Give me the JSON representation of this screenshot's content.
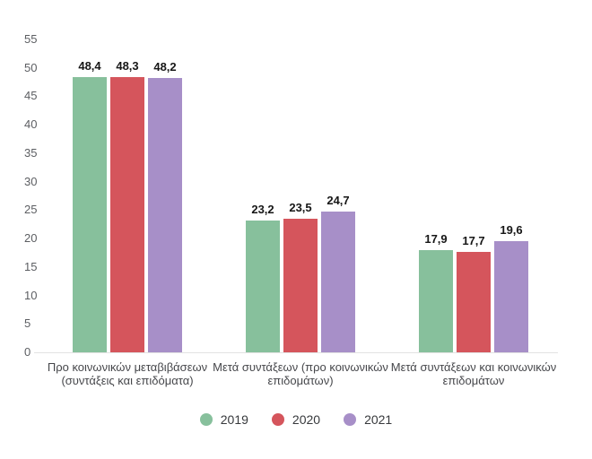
{
  "chart_data": {
    "type": "bar",
    "title": "",
    "xlabel": "",
    "ylabel": "",
    "categories": [
      "Προ κοινωνικών μεταβιβάσεων (συντάξεις και επιδόματα)",
      "Μετά συντάξεων (προ κοινωνικών επιδομάτων)",
      "Μετά συντάξεων και κοινωνικών επιδομάτων"
    ],
    "category_lines": [
      [
        "Προ κοινωνικών μεταβιβάσεων",
        "(συντάξεις και επιδόματα)"
      ],
      [
        "Μετά συντάξεων (προ κοινωνικών",
        "επιδομάτων)"
      ],
      [
        "Μετά συντάξεων και κοινωνικών",
        "επιδομάτων"
      ]
    ],
    "series": [
      {
        "name": "2019",
        "color": "#87c09c",
        "values": [
          48.4,
          23.2,
          17.9
        ],
        "value_labels": [
          "48,4",
          "23,2",
          "17,9"
        ]
      },
      {
        "name": "2020",
        "color": "#d5555c",
        "values": [
          48.3,
          23.5,
          17.7
        ],
        "value_labels": [
          "48,3",
          "23,5",
          "17,7"
        ]
      },
      {
        "name": "2021",
        "color": "#a78fc8",
        "values": [
          48.2,
          24.7,
          19.6
        ],
        "value_labels": [
          "48,2",
          "24,7",
          "19,6"
        ]
      }
    ],
    "yticks": [
      0,
      5,
      10,
      15,
      20,
      25,
      30,
      35,
      40,
      45,
      50,
      55
    ],
    "ylim": [
      0,
      55
    ],
    "grid": false,
    "decimal_separator": ",",
    "legend_position": "bottom",
    "background_color": "#ffffff",
    "axis_line_color": "#e2e2e2"
  }
}
